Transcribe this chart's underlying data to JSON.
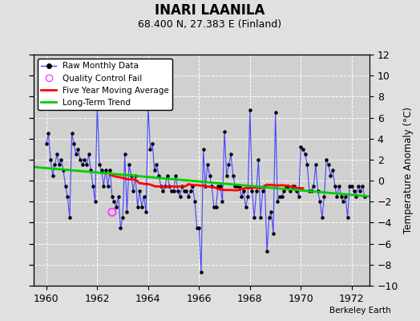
{
  "title": "INARI LAANILA",
  "subtitle": "68.400 N, 27.383 E (Finland)",
  "ylabel_right": "Temperature Anomaly (°C)",
  "credit": "Berkeley Earth",
  "xlim": [
    1959.5,
    1972.7
  ],
  "ylim": [
    -10,
    12
  ],
  "yticks": [
    -10,
    -8,
    -6,
    -4,
    -2,
    0,
    2,
    4,
    6,
    8,
    10,
    12
  ],
  "xticks": [
    1960,
    1962,
    1964,
    1966,
    1968,
    1970,
    1972
  ],
  "bg_color": "#e0e0e0",
  "plot_bg_color": "#d0d0d0",
  "grid_color": "#ffffff",
  "raw_color": "#4444ff",
  "raw_marker_color": "#000000",
  "ma_color": "#ff0000",
  "trend_color": "#00cc00",
  "qc_color": "#ff44ff",
  "legend_items": [
    "Raw Monthly Data",
    "Quality Control Fail",
    "Five Year Moving Average",
    "Long-Term Trend"
  ],
  "raw_x": [
    1960.0,
    1960.083,
    1960.167,
    1960.25,
    1960.333,
    1960.417,
    1960.5,
    1960.583,
    1960.667,
    1960.75,
    1960.833,
    1960.917,
    1961.0,
    1961.083,
    1961.167,
    1961.25,
    1961.333,
    1961.417,
    1961.5,
    1961.583,
    1961.667,
    1961.75,
    1961.833,
    1961.917,
    1962.0,
    1962.083,
    1962.167,
    1962.25,
    1962.333,
    1962.417,
    1962.5,
    1962.583,
    1962.667,
    1962.75,
    1962.833,
    1962.917,
    1963.0,
    1963.083,
    1963.167,
    1963.25,
    1963.333,
    1963.417,
    1963.5,
    1963.583,
    1963.667,
    1963.75,
    1963.833,
    1963.917,
    1964.0,
    1964.083,
    1964.167,
    1964.25,
    1964.333,
    1964.417,
    1964.5,
    1964.583,
    1964.667,
    1964.75,
    1964.833,
    1964.917,
    1965.0,
    1965.083,
    1965.167,
    1965.25,
    1965.333,
    1965.417,
    1965.5,
    1965.583,
    1965.667,
    1965.75,
    1965.833,
    1965.917,
    1966.0,
    1966.083,
    1966.167,
    1966.25,
    1966.333,
    1966.417,
    1966.5,
    1966.583,
    1966.667,
    1966.75,
    1966.833,
    1966.917,
    1967.0,
    1967.083,
    1967.167,
    1967.25,
    1967.333,
    1967.417,
    1967.5,
    1967.583,
    1967.667,
    1967.75,
    1967.833,
    1967.917,
    1968.0,
    1968.083,
    1968.167,
    1968.25,
    1968.333,
    1968.417,
    1968.5,
    1968.583,
    1968.667,
    1968.75,
    1968.833,
    1968.917,
    1969.0,
    1969.083,
    1969.167,
    1969.25,
    1969.333,
    1969.417,
    1969.5,
    1969.583,
    1969.667,
    1969.75,
    1969.833,
    1969.917,
    1970.0,
    1970.083,
    1970.167,
    1970.25,
    1970.333,
    1970.417,
    1970.5,
    1970.583,
    1970.667,
    1970.75,
    1970.833,
    1970.917,
    1971.0,
    1971.083,
    1971.167,
    1971.25,
    1971.333,
    1971.417,
    1971.5,
    1971.583,
    1971.667,
    1971.75,
    1971.833,
    1971.917,
    1972.0,
    1972.083,
    1972.167,
    1972.25,
    1972.333,
    1972.417,
    1972.5
  ],
  "raw_y": [
    3.5,
    4.5,
    2.0,
    0.5,
    1.5,
    2.5,
    1.5,
    2.0,
    1.0,
    -0.5,
    -1.5,
    -3.5,
    4.5,
    3.5,
    2.5,
    3.0,
    2.0,
    1.5,
    2.0,
    1.5,
    2.5,
    1.0,
    -0.5,
    -2.0,
    7.0,
    1.5,
    1.0,
    -0.5,
    1.0,
    -0.5,
    1.0,
    -1.5,
    -2.0,
    -2.5,
    -1.5,
    -4.5,
    -3.5,
    2.5,
    -3.0,
    1.5,
    0.5,
    -1.0,
    0.5,
    -2.5,
    -1.0,
    -2.5,
    -1.5,
    -3.0,
    7.0,
    3.0,
    3.5,
    1.0,
    1.5,
    0.5,
    -0.5,
    -1.0,
    -0.5,
    0.5,
    -0.5,
    -1.0,
    -1.0,
    0.5,
    -1.0,
    -1.5,
    -0.5,
    -1.0,
    -1.0,
    -1.5,
    -1.0,
    -0.5,
    -2.0,
    -4.5,
    -4.5,
    -8.7,
    3.0,
    -0.5,
    1.5,
    0.5,
    -0.5,
    -2.5,
    -2.5,
    -0.5,
    -0.5,
    -2.0,
    4.7,
    0.5,
    1.5,
    2.5,
    0.5,
    -0.5,
    -0.5,
    -0.5,
    -1.5,
    -1.0,
    -2.5,
    -1.5,
    6.7,
    -1.0,
    -3.5,
    -1.0,
    2.0,
    -3.5,
    -1.0,
    -0.5,
    -6.7,
    -3.5,
    -3.0,
    -5.0,
    6.5,
    -2.0,
    -1.5,
    -1.5,
    -1.0,
    -0.5,
    -0.5,
    -1.0,
    -0.5,
    -0.5,
    -1.0,
    -1.5,
    3.2,
    3.0,
    2.5,
    1.5,
    -1.0,
    -1.0,
    -0.5,
    1.5,
    -1.0,
    -2.0,
    -3.5,
    -1.5,
    2.0,
    1.5,
    0.5,
    1.0,
    -0.5,
    -1.5,
    -0.5,
    -1.5,
    -2.0,
    -1.5,
    -3.5,
    -0.5,
    -0.5,
    -1.0,
    -1.5,
    -0.5,
    -1.0,
    -0.5,
    -1.5
  ],
  "qc_fail_x": [
    1962.583
  ],
  "qc_fail_y": [
    -3.0
  ],
  "trend_x": [
    1959.5,
    1972.7
  ],
  "trend_y": [
    1.3,
    -1.5
  ],
  "ma_window": 60
}
